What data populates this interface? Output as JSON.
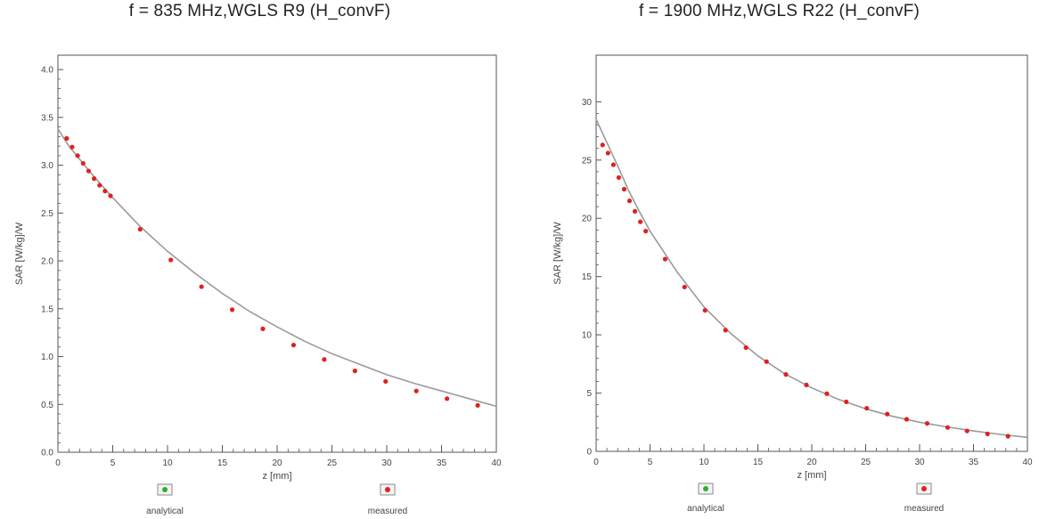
{
  "colors": {
    "analytical": "#2ab02a",
    "measured": "#e02020",
    "curve": "#9a9a9a",
    "frame": "#555555"
  },
  "chart_data": [
    {
      "type": "scatter",
      "title": "f = 835 MHz,WGLS R9 (H_convF)",
      "xlabel": "z [mm]",
      "ylabel": "SAR [W/kg]/W",
      "xlim": [
        0,
        40
      ],
      "ylim": [
        0,
        4.15
      ],
      "x_ticks": [
        0,
        5,
        10,
        15,
        20,
        25,
        30,
        35,
        40
      ],
      "x_tick_labels": [
        "0",
        "5",
        "10",
        "15",
        "20",
        "25",
        "30",
        "35",
        "40"
      ],
      "y_ticks": [
        0,
        0.5,
        1.0,
        1.5,
        2.0,
        2.5,
        3.0,
        3.5,
        4.0
      ],
      "y_tick_labels": [
        "0.0",
        "0.5",
        "1.0",
        "1.5",
        "2.0",
        "2.5",
        "3.0",
        "3.5",
        "4.0"
      ],
      "grid": false,
      "legend_position": "bottom",
      "series": [
        {
          "name": "analytical",
          "x": [
            0,
            1,
            2,
            3,
            4,
            5,
            7.5,
            10,
            12.5,
            15,
            17.5,
            20,
            22.5,
            25,
            27.5,
            30,
            32.5,
            35,
            37.5,
            40
          ],
          "y": [
            3.38,
            3.2,
            3.06,
            2.92,
            2.79,
            2.66,
            2.36,
            2.1,
            1.87,
            1.66,
            1.47,
            1.31,
            1.16,
            1.03,
            0.92,
            0.81,
            0.72,
            0.64,
            0.56,
            0.48
          ]
        },
        {
          "name": "measured",
          "x": [
            0.8,
            1.3,
            1.8,
            2.3,
            2.8,
            3.3,
            3.8,
            4.3,
            4.8,
            7.5,
            10.3,
            13.1,
            15.9,
            18.7,
            21.5,
            24.3,
            27.1,
            29.9,
            32.7,
            35.5,
            38.3
          ],
          "y": [
            3.28,
            3.19,
            3.1,
            3.02,
            2.94,
            2.86,
            2.79,
            2.73,
            2.68,
            2.33,
            2.01,
            1.73,
            1.49,
            1.29,
            1.12,
            0.97,
            0.85,
            0.74,
            0.64,
            0.56,
            0.49
          ]
        }
      ]
    },
    {
      "type": "scatter",
      "title": "f = 1900 MHz,WGLS R22 (H_convF)",
      "xlabel": "z [mm]",
      "ylabel": "SAR [W/kg]/W",
      "xlim": [
        0,
        40
      ],
      "ylim": [
        0,
        34
      ],
      "x_ticks": [
        0,
        5,
        10,
        15,
        20,
        25,
        30,
        35,
        40
      ],
      "x_tick_labels": [
        "0",
        "5",
        "10",
        "15",
        "20",
        "25",
        "30",
        "35",
        "40"
      ],
      "y_ticks": [
        0,
        5,
        10,
        15,
        20,
        25,
        30
      ],
      "y_tick_labels": [
        "0",
        "5",
        "10",
        "15",
        "20",
        "25",
        "30"
      ],
      "grid": false,
      "legend_position": "bottom",
      "series": [
        {
          "name": "analytical",
          "x": [
            0,
            0.5,
            1,
            2,
            3,
            4,
            5,
            7.5,
            10,
            12.5,
            15,
            17.5,
            20,
            22.5,
            25,
            27.5,
            30,
            32.5,
            35,
            37.5,
            40
          ],
          "y": [
            28.5,
            27.5,
            26.5,
            24.5,
            22.4,
            20.6,
            18.9,
            15.4,
            12.4,
            10.1,
            8.2,
            6.65,
            5.45,
            4.45,
            3.65,
            3.0,
            2.5,
            2.1,
            1.75,
            1.45,
            1.2
          ]
        },
        {
          "name": "measured",
          "x": [
            0.6,
            1.1,
            1.6,
            2.1,
            2.6,
            3.1,
            3.6,
            4.1,
            4.6,
            6.4,
            8.2,
            10.1,
            12.0,
            13.9,
            15.8,
            17.6,
            19.5,
            21.4,
            23.2,
            25.1,
            27.0,
            28.8,
            30.7,
            32.6,
            34.4,
            36.3,
            38.2
          ],
          "y": [
            26.3,
            25.6,
            24.6,
            23.5,
            22.5,
            21.5,
            20.6,
            19.7,
            18.9,
            16.5,
            14.1,
            12.1,
            10.4,
            8.9,
            7.7,
            6.6,
            5.7,
            4.95,
            4.25,
            3.7,
            3.2,
            2.75,
            2.4,
            2.05,
            1.75,
            1.5,
            1.3
          ]
        }
      ]
    }
  ]
}
